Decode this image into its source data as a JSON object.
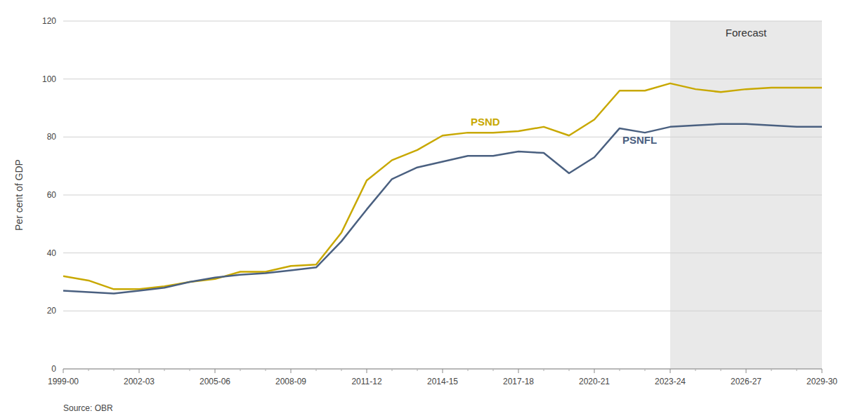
{
  "chart_data": {
    "type": "line",
    "ylabel": "Per cent of GDP",
    "source": "Source: OBR",
    "forecast": {
      "label": "Forecast",
      "start": "2023-24"
    },
    "categories": [
      "1999-00",
      null,
      null,
      "2002-03",
      null,
      null,
      "2005-06",
      null,
      null,
      "2008-09",
      null,
      null,
      "2011-12",
      null,
      null,
      "2014-15",
      null,
      null,
      "2017-18",
      null,
      null,
      "2020-21",
      null,
      null,
      "2023-24",
      null,
      null,
      "2026-27",
      null,
      null,
      "2029-30"
    ],
    "series": [
      {
        "name": "PSND",
        "color": "#c8a800",
        "values": [
          32.0,
          30.5,
          27.5,
          27.5,
          28.5,
          30.0,
          31.0,
          33.5,
          33.5,
          35.5,
          36.0,
          47.0,
          65.0,
          72.0,
          75.5,
          80.5,
          81.5,
          81.5,
          82.0,
          83.5,
          80.5,
          86.0,
          96.0,
          96.0,
          98.5,
          96.5,
          95.5,
          96.5,
          97.0,
          97.0,
          97.0
        ]
      },
      {
        "name": "PSNFL",
        "color": "#4a6080",
        "values": [
          27.0,
          26.5,
          26.0,
          27.0,
          28.0,
          30.0,
          31.5,
          32.5,
          33.0,
          34.0,
          35.0,
          44.0,
          55.0,
          65.5,
          69.5,
          71.5,
          73.5,
          73.5,
          75.0,
          74.5,
          67.5,
          73.0,
          83.0,
          81.5,
          83.5,
          84.0,
          84.5,
          84.5,
          84.0,
          83.5,
          83.5
        ]
      }
    ],
    "ylim": [
      0,
      120
    ],
    "yticks": [
      0,
      20,
      40,
      60,
      80,
      100,
      120
    ],
    "grid": true
  }
}
